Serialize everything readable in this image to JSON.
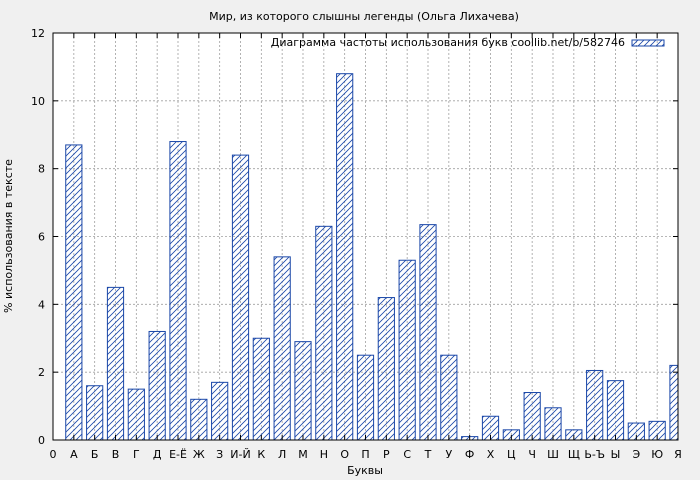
{
  "chart_data": {
    "type": "bar",
    "title": "Мир, из которого слышны легенды (Ольга Лихачева)",
    "xlabel": "Буквы",
    "ylabel": "% использования в тексте",
    "legend": {
      "label": "Диаграмма частоты использования букв coollib.net/b/582746",
      "position": "top-right"
    },
    "ylim": [
      0,
      12
    ],
    "yticks": [
      "0",
      "2",
      "4",
      "6",
      "8",
      "10",
      "12"
    ],
    "x_origin_label": "0",
    "categories": [
      "А",
      "Б",
      "В",
      "Г",
      "Д",
      "Е-Ё",
      "Ж",
      "З",
      "И-Й",
      "К",
      "Л",
      "М",
      "Н",
      "О",
      "П",
      "Р",
      "С",
      "Т",
      "У",
      "Ф",
      "Х",
      "Ц",
      "Ч",
      "Ш",
      "Щ",
      "Ь-Ъ",
      "Ы",
      "Э",
      "Ю",
      "Я"
    ],
    "values": [
      8.7,
      1.6,
      4.5,
      1.5,
      3.2,
      8.8,
      1.2,
      1.7,
      8.4,
      3.0,
      5.4,
      2.9,
      6.3,
      10.8,
      2.5,
      4.2,
      5.3,
      6.35,
      2.5,
      0.1,
      0.7,
      0.3,
      1.4,
      0.95,
      0.3,
      2.05,
      1.75,
      0.5,
      0.55,
      2.2
    ],
    "grid": true,
    "colors": {
      "bar_stroke": "#1a47a8",
      "hatch": "#1a47a8",
      "grid": "#a0a0a0",
      "plot_bg": "#ffffff",
      "page_bg": "#f0f0f0"
    }
  }
}
